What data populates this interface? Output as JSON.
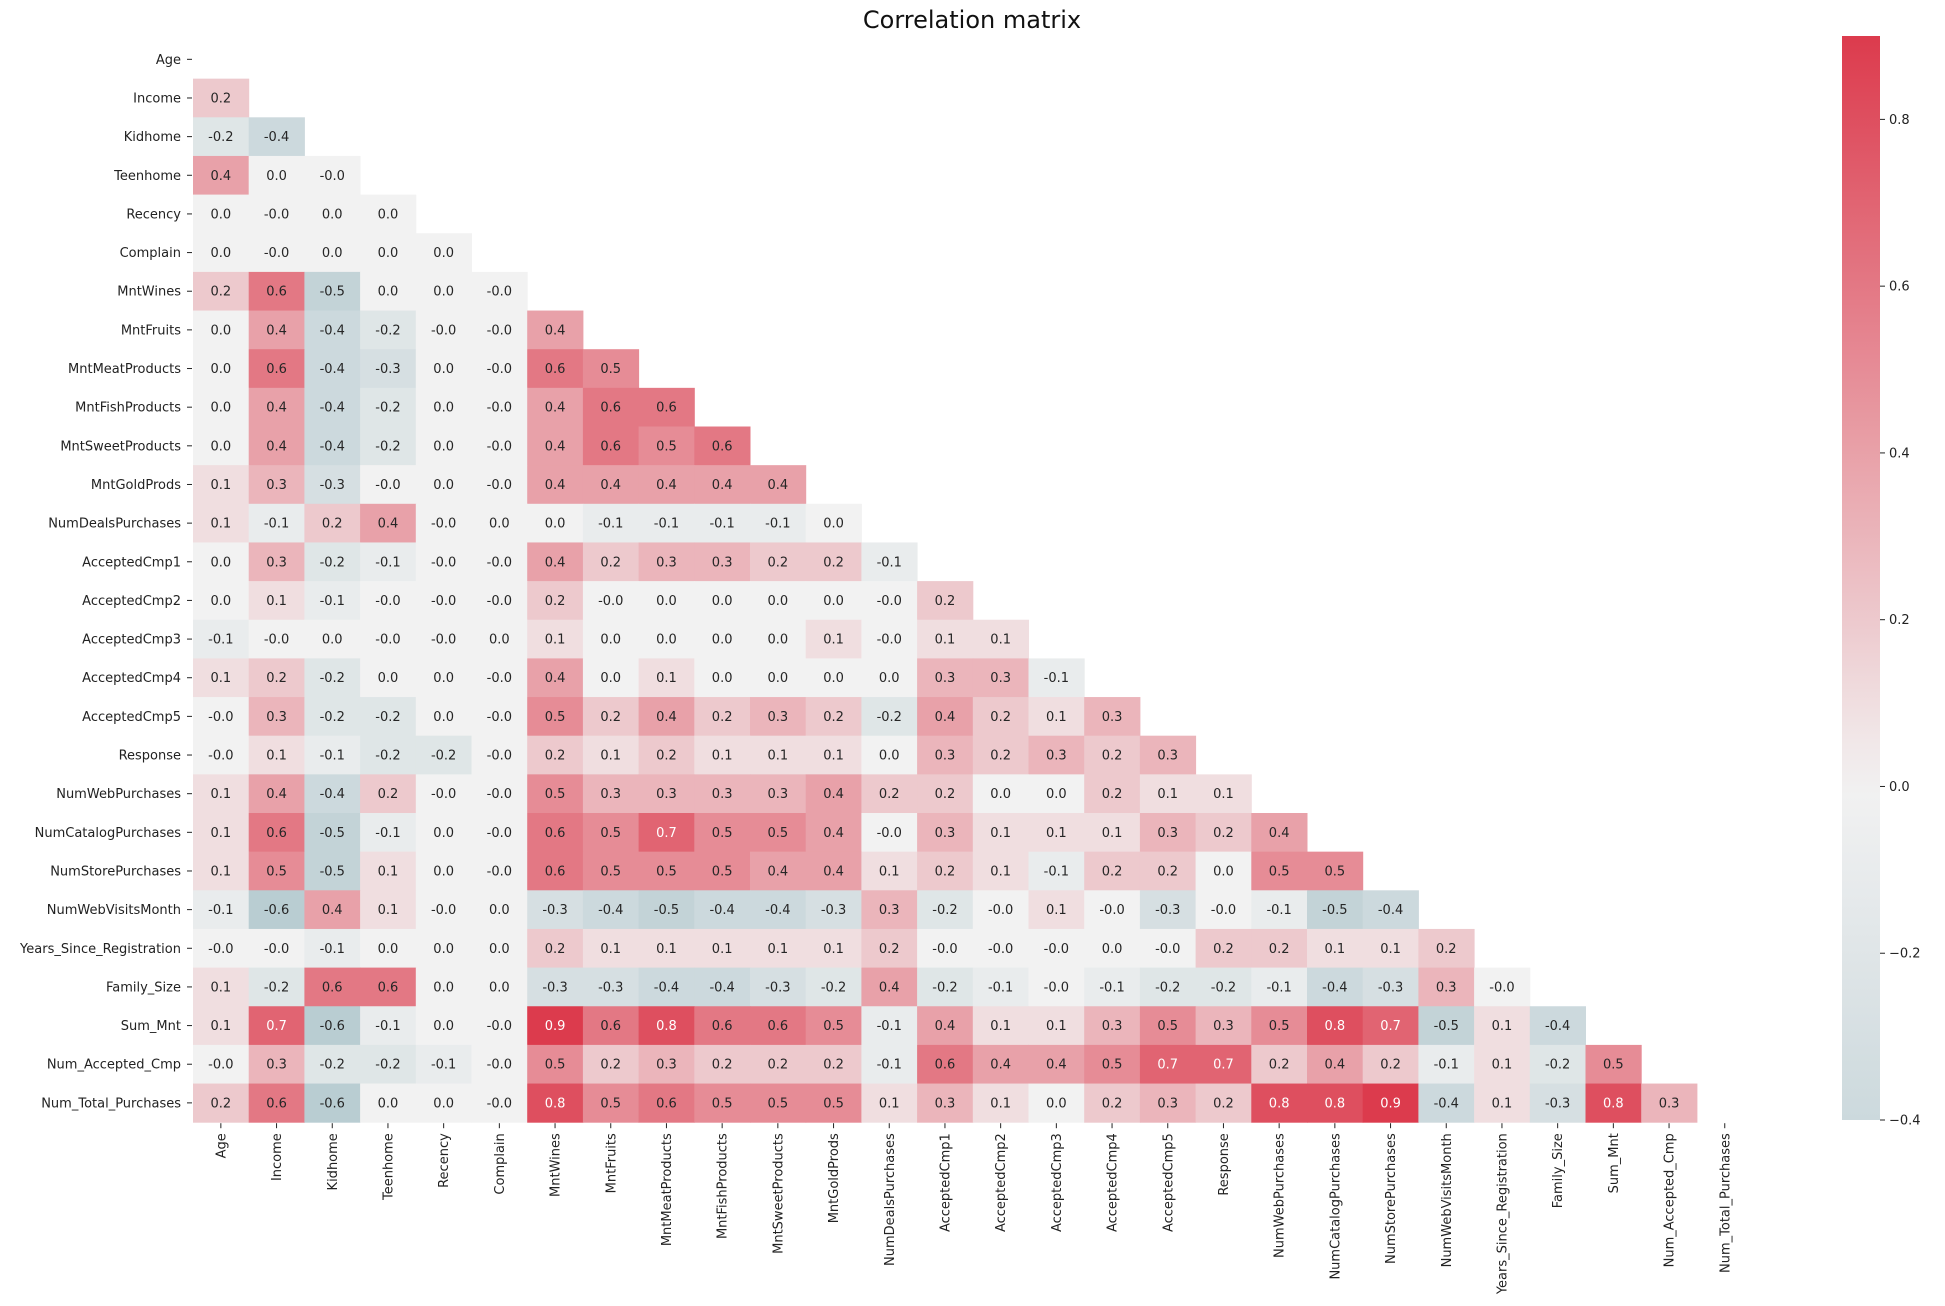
{
  "chart_data": {
    "type": "heatmap",
    "title": "Correlation matrix",
    "mask": "upper-triangle-including-diagonal",
    "colormap": {
      "low": "#9dbac2",
      "mid": "#f2f2f2",
      "high": "#dc3b4d",
      "vmin": -0.4,
      "vmax": 0.9,
      "center": 0.0
    },
    "colorbar_ticks": [
      "−0.4",
      "−0.2",
      "0.0",
      "0.2",
      "0.4",
      "0.6",
      "0.8"
    ],
    "colorbar_tick_values": [
      -0.4,
      -0.2,
      0.0,
      0.2,
      0.4,
      0.6,
      0.8
    ],
    "labels": [
      "Age",
      "Income",
      "Kidhome",
      "Teenhome",
      "Recency",
      "Complain",
      "MntWines",
      "MntFruits",
      "MntMeatProducts",
      "MntFishProducts",
      "MntSweetProducts",
      "MntGoldProds",
      "NumDealsPurchases",
      "AcceptedCmp1",
      "AcceptedCmp2",
      "AcceptedCmp3",
      "AcceptedCmp4",
      "AcceptedCmp5",
      "Response",
      "NumWebPurchases",
      "NumCatalogPurchases",
      "NumStorePurchases",
      "NumWebVisitsMonth",
      "Years_Since_Registration",
      "Family_Size",
      "Sum_Mnt",
      "Num_Accepted_Cmp",
      "Num_Total_Purchases"
    ],
    "rows": [
      [],
      [
        "0.2"
      ],
      [
        "-0.2",
        "-0.4"
      ],
      [
        "0.4",
        "0.0",
        "-0.0"
      ],
      [
        "0.0",
        "-0.0",
        "0.0",
        "0.0"
      ],
      [
        "0.0",
        "-0.0",
        "0.0",
        "0.0",
        "0.0"
      ],
      [
        "0.2",
        "0.6",
        "-0.5",
        "0.0",
        "0.0",
        "-0.0"
      ],
      [
        "0.0",
        "0.4",
        "-0.4",
        "-0.2",
        "-0.0",
        "-0.0",
        "0.4"
      ],
      [
        "0.0",
        "0.6",
        "-0.4",
        "-0.3",
        "0.0",
        "-0.0",
        "0.6",
        "0.5"
      ],
      [
        "0.0",
        "0.4",
        "-0.4",
        "-0.2",
        "0.0",
        "-0.0",
        "0.4",
        "0.6",
        "0.6"
      ],
      [
        "0.0",
        "0.4",
        "-0.4",
        "-0.2",
        "0.0",
        "-0.0",
        "0.4",
        "0.6",
        "0.5",
        "0.6"
      ],
      [
        "0.1",
        "0.3",
        "-0.3",
        "-0.0",
        "0.0",
        "-0.0",
        "0.4",
        "0.4",
        "0.4",
        "0.4",
        "0.4"
      ],
      [
        "0.1",
        "-0.1",
        "0.2",
        "0.4",
        "-0.0",
        "0.0",
        "0.0",
        "-0.1",
        "-0.1",
        "-0.1",
        "-0.1",
        "0.0"
      ],
      [
        "0.0",
        "0.3",
        "-0.2",
        "-0.1",
        "-0.0",
        "-0.0",
        "0.4",
        "0.2",
        "0.3",
        "0.3",
        "0.2",
        "0.2",
        "-0.1"
      ],
      [
        "0.0",
        "0.1",
        "-0.1",
        "-0.0",
        "-0.0",
        "-0.0",
        "0.2",
        "-0.0",
        "0.0",
        "0.0",
        "0.0",
        "0.0",
        "-0.0",
        "0.2"
      ],
      [
        "-0.1",
        "-0.0",
        "0.0",
        "-0.0",
        "-0.0",
        "0.0",
        "0.1",
        "0.0",
        "0.0",
        "0.0",
        "0.0",
        "0.1",
        "-0.0",
        "0.1",
        "0.1"
      ],
      [
        "0.1",
        "0.2",
        "-0.2",
        "0.0",
        "0.0",
        "-0.0",
        "0.4",
        "0.0",
        "0.1",
        "0.0",
        "0.0",
        "0.0",
        "0.0",
        "0.3",
        "0.3",
        "-0.1"
      ],
      [
        "-0.0",
        "0.3",
        "-0.2",
        "-0.2",
        "0.0",
        "-0.0",
        "0.5",
        "0.2",
        "0.4",
        "0.2",
        "0.3",
        "0.2",
        "-0.2",
        "0.4",
        "0.2",
        "0.1",
        "0.3"
      ],
      [
        "-0.0",
        "0.1",
        "-0.1",
        "-0.2",
        "-0.2",
        "-0.0",
        "0.2",
        "0.1",
        "0.2",
        "0.1",
        "0.1",
        "0.1",
        "0.0",
        "0.3",
        "0.2",
        "0.3",
        "0.2",
        "0.3"
      ],
      [
        "0.1",
        "0.4",
        "-0.4",
        "0.2",
        "-0.0",
        "-0.0",
        "0.5",
        "0.3",
        "0.3",
        "0.3",
        "0.3",
        "0.4",
        "0.2",
        "0.2",
        "0.0",
        "0.0",
        "0.2",
        "0.1",
        "0.1"
      ],
      [
        "0.1",
        "0.6",
        "-0.5",
        "-0.1",
        "0.0",
        "-0.0",
        "0.6",
        "0.5",
        "0.7",
        "0.5",
        "0.5",
        "0.4",
        "-0.0",
        "0.3",
        "0.1",
        "0.1",
        "0.1",
        "0.3",
        "0.2",
        "0.4"
      ],
      [
        "0.1",
        "0.5",
        "-0.5",
        "0.1",
        "0.0",
        "-0.0",
        "0.6",
        "0.5",
        "0.5",
        "0.5",
        "0.4",
        "0.4",
        "0.1",
        "0.2",
        "0.1",
        "-0.1",
        "0.2",
        "0.2",
        "0.0",
        "0.5",
        "0.5"
      ],
      [
        "-0.1",
        "-0.6",
        "0.4",
        "0.1",
        "-0.0",
        "0.0",
        "-0.3",
        "-0.4",
        "-0.5",
        "-0.4",
        "-0.4",
        "-0.3",
        "0.3",
        "-0.2",
        "-0.0",
        "0.1",
        "-0.0",
        "-0.3",
        "-0.0",
        "-0.1",
        "-0.5",
        "-0.4"
      ],
      [
        "-0.0",
        "-0.0",
        "-0.1",
        "0.0",
        "0.0",
        "0.0",
        "0.2",
        "0.1",
        "0.1",
        "0.1",
        "0.1",
        "0.1",
        "0.2",
        "-0.0",
        "-0.0",
        "-0.0",
        "0.0",
        "-0.0",
        "0.2",
        "0.2",
        "0.1",
        "0.1",
        "0.2"
      ],
      [
        "0.1",
        "-0.2",
        "0.6",
        "0.6",
        "0.0",
        "0.0",
        "-0.3",
        "-0.3",
        "-0.4",
        "-0.4",
        "-0.3",
        "-0.2",
        "0.4",
        "-0.2",
        "-0.1",
        "-0.0",
        "-0.1",
        "-0.2",
        "-0.2",
        "-0.1",
        "-0.4",
        "-0.3",
        "0.3",
        "-0.0"
      ],
      [
        "0.1",
        "0.7",
        "-0.6",
        "-0.1",
        "0.0",
        "-0.0",
        "0.9",
        "0.6",
        "0.8",
        "0.6",
        "0.6",
        "0.5",
        "-0.1",
        "0.4",
        "0.1",
        "0.1",
        "0.3",
        "0.5",
        "0.3",
        "0.5",
        "0.8",
        "0.7",
        "-0.5",
        "0.1",
        "-0.4"
      ],
      [
        "-0.0",
        "0.3",
        "-0.2",
        "-0.2",
        "-0.1",
        "-0.0",
        "0.5",
        "0.2",
        "0.3",
        "0.2",
        "0.2",
        "0.2",
        "-0.1",
        "0.6",
        "0.4",
        "0.4",
        "0.5",
        "0.7",
        "0.7",
        "0.2",
        "0.4",
        "0.2",
        "-0.1",
        "0.1",
        "-0.2",
        "0.5"
      ],
      [
        "0.2",
        "0.6",
        "-0.6",
        "0.0",
        "0.0",
        "-0.0",
        "0.8",
        "0.5",
        "0.6",
        "0.5",
        "0.5",
        "0.5",
        "0.1",
        "0.3",
        "0.1",
        "0.0",
        "0.2",
        "0.3",
        "0.2",
        "0.8",
        "0.8",
        "0.9",
        "-0.4",
        "0.1",
        "-0.3",
        "0.8",
        "0.3"
      ]
    ]
  }
}
